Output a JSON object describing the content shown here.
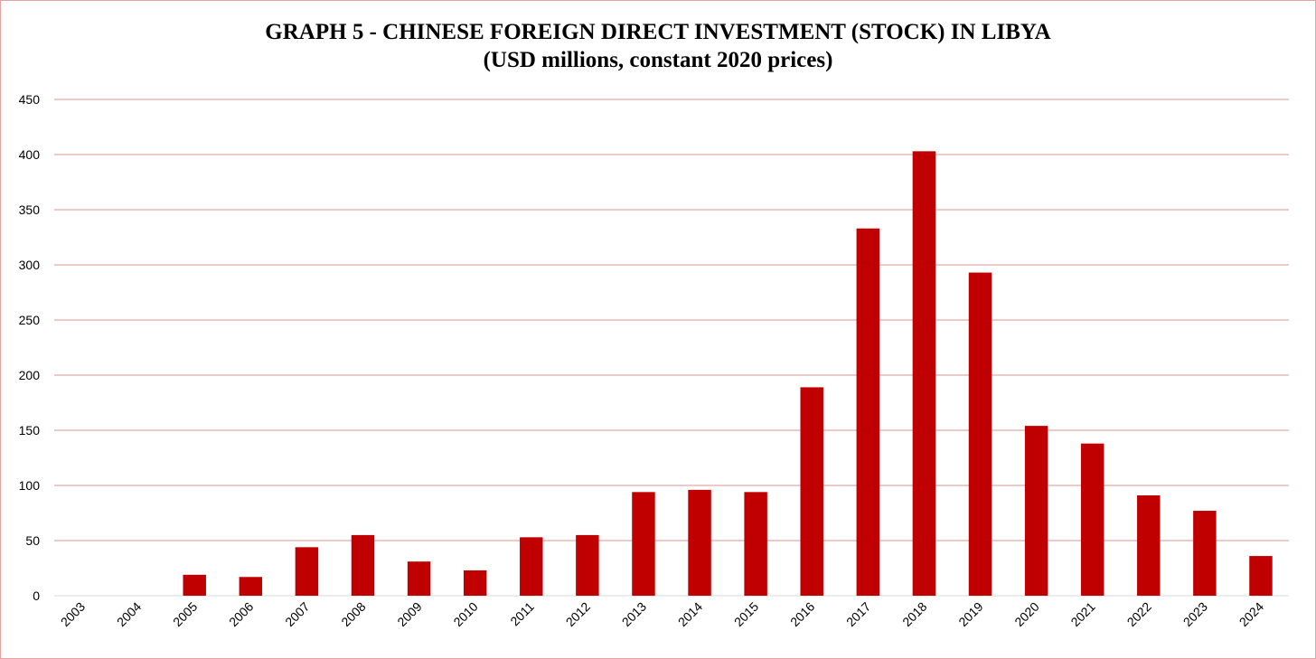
{
  "chart_data": {
    "type": "bar",
    "title": "GRAPH 5 - CHINESE FOREIGN DIRECT INVESTMENT (STOCK) IN LIBYA",
    "subtitle": "(USD millions, constant 2020 prices)",
    "xlabel": "",
    "ylabel": "",
    "categories": [
      "2003",
      "2004",
      "2005",
      "2006",
      "2007",
      "2008",
      "2009",
      "2010",
      "2011",
      "2012",
      "2013",
      "2014",
      "2015",
      "2016",
      "2017",
      "2018",
      "2019",
      "2020",
      "2021",
      "2022",
      "2023",
      "2024"
    ],
    "values": [
      0,
      0,
      19,
      17,
      44,
      55,
      31,
      23,
      53,
      55,
      94,
      96,
      94,
      189,
      333,
      403,
      293,
      154,
      138,
      91,
      77,
      36
    ],
    "ylim": [
      0,
      450
    ],
    "yticks": [
      0,
      50,
      100,
      150,
      200,
      250,
      300,
      350,
      400,
      450
    ],
    "grid": true,
    "legend": "none",
    "colors": {
      "bar": "#c00000",
      "grid": "#d99694",
      "baseline": "#d9d9d9",
      "border": "#e6a3a3"
    }
  }
}
